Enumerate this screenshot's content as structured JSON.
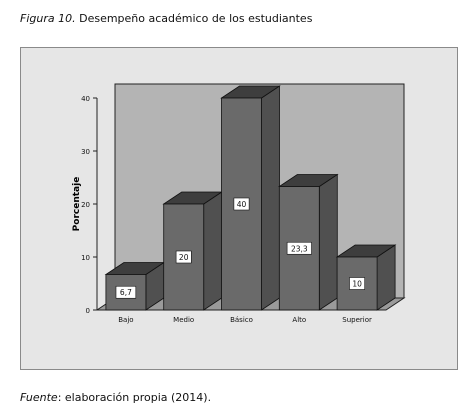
{
  "figure": {
    "label": "Figura 10.",
    "title": "Desempeño académico de los estudiantes"
  },
  "source": {
    "label": "Fuente",
    "text": ": elaboración propia (2014)."
  },
  "colors": {
    "bar_front": "#6a6a6a",
    "bar_top": "#3e3e3e",
    "bar_side": "#505050",
    "plot_back": "#b4b4b4",
    "plot_floor": "#9a9a9a",
    "frame": "#e6e6e6"
  },
  "chart_data": {
    "type": "bar",
    "categories": [
      "Bajo",
      "Medio",
      "Básico",
      "Alto",
      "Superior"
    ],
    "values": [
      6.7,
      20,
      40,
      23.3,
      10
    ],
    "data_labels": [
      "6,7",
      "20",
      "40",
      "23,3",
      "10"
    ],
    "ylabel": "Porcentaje",
    "xlabel": "",
    "ylim": [
      0,
      40
    ],
    "yticks": [
      0,
      10,
      20,
      30,
      40
    ],
    "grid": false,
    "three_d": true
  }
}
